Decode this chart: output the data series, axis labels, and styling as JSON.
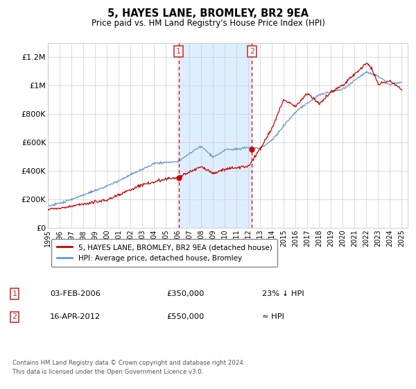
{
  "title": "5, HAYES LANE, BROMLEY, BR2 9EA",
  "subtitle": "Price paid vs. HM Land Registry's House Price Index (HPI)",
  "ylabel_ticks": [
    "£0",
    "£200K",
    "£400K",
    "£600K",
    "£800K",
    "£1M",
    "£1.2M"
  ],
  "ytick_values": [
    0,
    200000,
    400000,
    600000,
    800000,
    1000000,
    1200000
  ],
  "ylim": [
    0,
    1300000
  ],
  "xlim_start": 1995.0,
  "xlim_end": 2025.5,
  "purchase1_x": 2006.08,
  "purchase1_y": 350000,
  "purchase2_x": 2012.29,
  "purchase2_y": 550000,
  "shade_color": "#ddeeff",
  "legend_line1": "5, HAYES LANE, BROMLEY, BR2 9EA (detached house)",
  "legend_line2": "HPI: Average price, detached house, Bromley",
  "annot1_date": "03-FEB-2006",
  "annot1_price": "£350,000",
  "annot1_hpi": "23% ↓ HPI",
  "annot2_date": "16-APR-2012",
  "annot2_price": "£550,000",
  "annot2_hpi": "≈ HPI",
  "footer": "Contains HM Land Registry data © Crown copyright and database right 2024.\nThis data is licensed under the Open Government Licence v3.0.",
  "hpi_color": "#6699cc",
  "price_color": "#cc0000",
  "box_color": "#cc3333",
  "grid_color": "#cccccc",
  "bg_color": "#ffffff"
}
